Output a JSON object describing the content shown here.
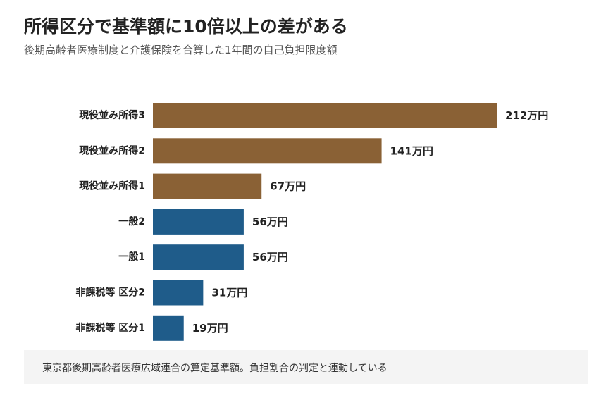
{
  "header": {
    "title": "所得区分で基準額に10倍以上の差がある",
    "subtitle": "後期高齢者医療制度と介護保険を合算した1年間の自己負担限度額"
  },
  "note": "東京都後期高齢者医療広域連合の算定基準額。負担割合の判定と連動している",
  "colors": {
    "highIncome": "#8a6135",
    "general": "#1f5c8a"
  },
  "chart_data": {
    "type": "bar",
    "orientation": "horizontal",
    "title": "所得区分で基準額に10倍以上の差がある",
    "subtitle": "後期高齢者医療制度と介護保険を合算した1年間の自己負担限度額",
    "unit": "万円",
    "categories": [
      "現役並み所得3",
      "現役並み所得2",
      "現役並み所得1",
      "一般2",
      "一般1",
      "非課税等 区分2",
      "非課税等 区分1"
    ],
    "values": [
      212,
      141,
      67,
      56,
      56,
      31,
      19
    ],
    "value_labels": [
      "212万円",
      "141万円",
      "67万円",
      "56万円",
      "56万円",
      "31万円",
      "19万円"
    ],
    "bar_colors": [
      "#8a6135",
      "#8a6135",
      "#8a6135",
      "#1f5c8a",
      "#1f5c8a",
      "#1f5c8a",
      "#1f5c8a"
    ],
    "xlim": [
      0,
      212
    ],
    "grid": false,
    "legend": "none"
  }
}
